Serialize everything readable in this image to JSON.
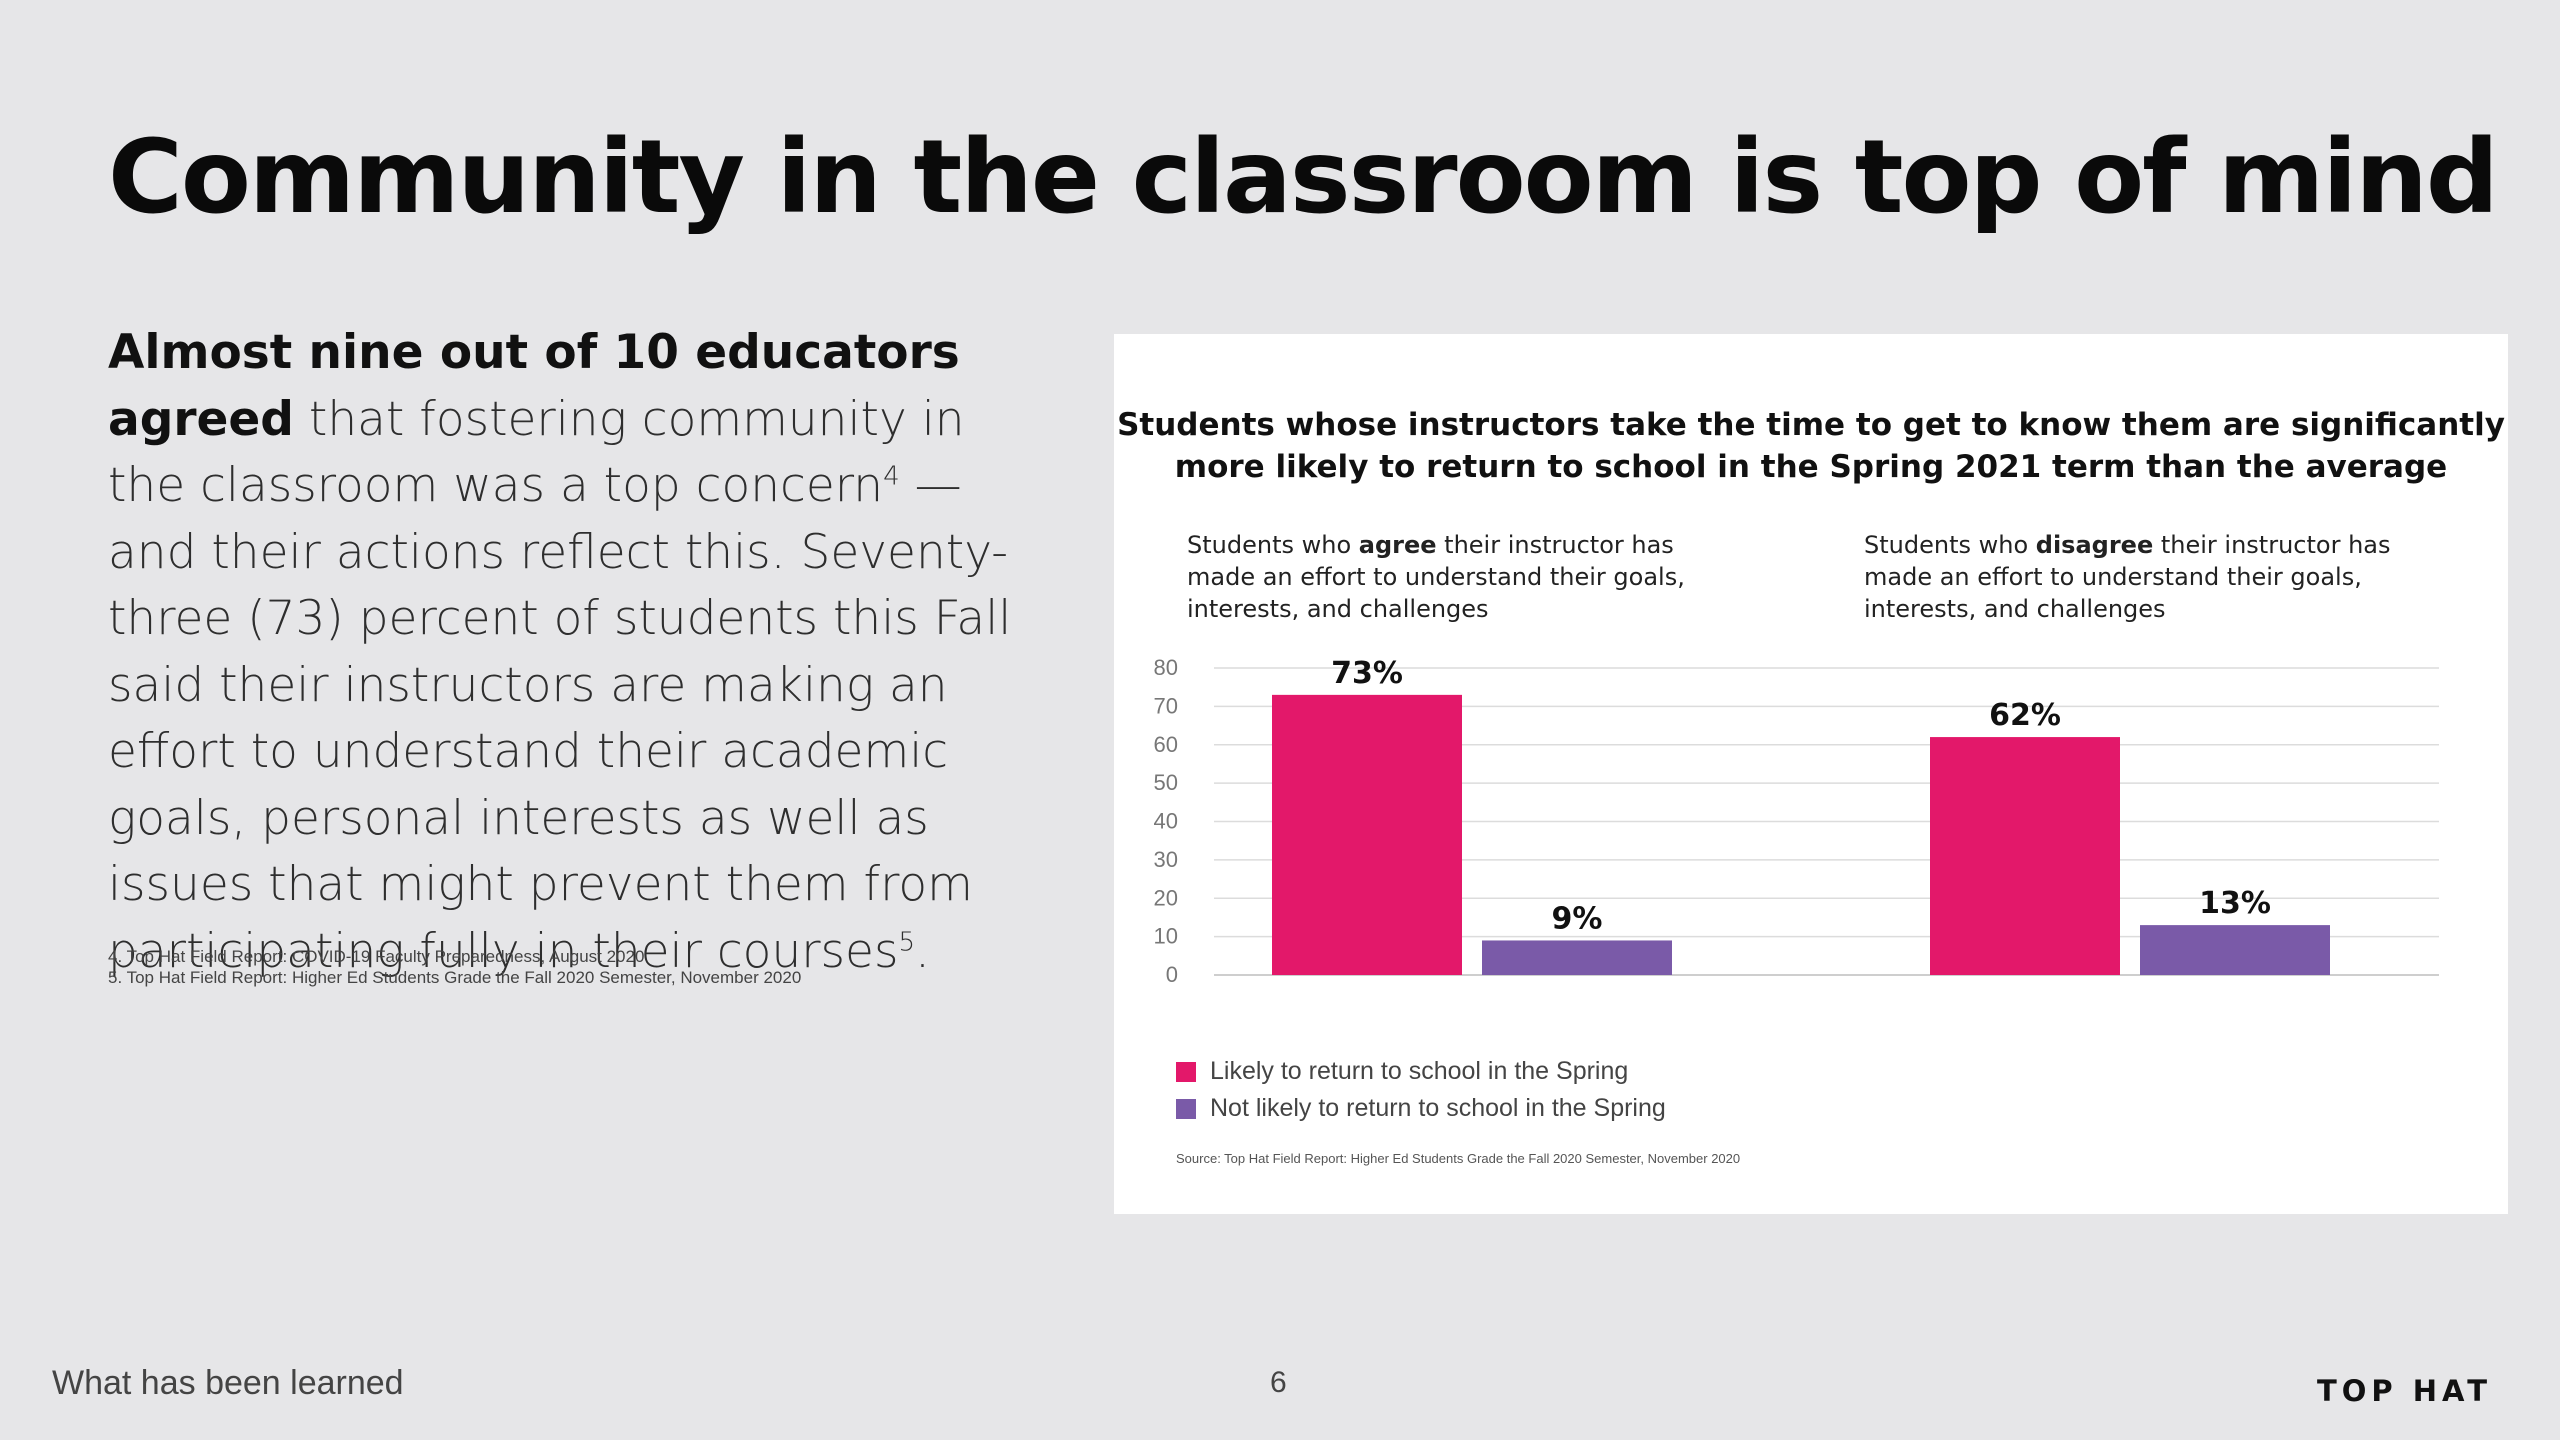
{
  "page": {
    "title": "Community in the classroom is top of mind",
    "body": {
      "lead": "Almost nine out of 10 educators agreed",
      "text_1": "that fostering community in the classroom was a top concern",
      "sup_1": "4",
      "text_2": " — and their actions reflect this. Seventy-three (73) percent of students this Fall said their instructors are making an effort to understand their academic goals, personal interests as well as issues that might prevent them from participating fully in their courses",
      "sup_2": "5",
      "text_3": "."
    },
    "footnotes": [
      "4. Top Hat Field Report: COVID-19 Faculty Preparedness, August 2020",
      "5. Top Hat Field Report: Higher Ed Students Grade the Fall 2020 Semester, November 2020"
    ],
    "footer": {
      "section": "What has been learned",
      "page_number": "6",
      "logo": "TOP HAT"
    }
  },
  "chart_data": {
    "type": "bar",
    "title": "Students whose instructors take the time to get to know them are significantly more likely to return to school in the Spring 2021 term than the average",
    "groups": [
      {
        "label_pre": "Students who ",
        "label_bold": "agree",
        "label_post": " their instructor has made an effort to understand their goals, interests, and challenges"
      },
      {
        "label_pre": "Students who ",
        "label_bold": "disagree",
        "label_post": " their instructor has made an effort to understand their goals, interests, and challenges"
      }
    ],
    "series": [
      {
        "name": "Likely to return to school in the Spring",
        "color": "#e3186a",
        "values": [
          73,
          62
        ],
        "labels": [
          "73%",
          "62%"
        ]
      },
      {
        "name": "Not likely to return to school in the Spring",
        "color": "#7a5aa8",
        "values": [
          9,
          13
        ],
        "labels": [
          "9%",
          "13%"
        ]
      }
    ],
    "y_ticks": [
      0,
      10,
      20,
      30,
      40,
      50,
      60,
      70,
      80
    ],
    "ylim": [
      0,
      80
    ],
    "grid": true,
    "legend_position": "bottom-left",
    "source": "Source: Top Hat Field Report: Higher Ed Students Grade the Fall 2020 Semester, November 2020"
  }
}
